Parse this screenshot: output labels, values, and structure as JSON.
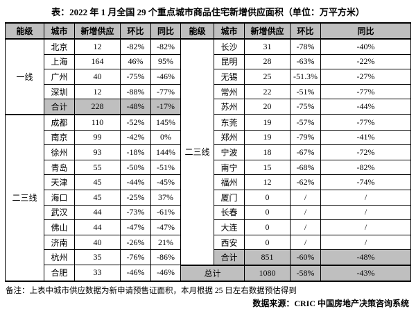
{
  "title": "表：2022 年 1 月全国 29 个重点城市商品住宅新增供应面积（单位：万平方米）",
  "colors": {
    "header_bg": "#bfbfbf",
    "summary_bg": "#bfbfbf",
    "border": "#000000",
    "page_bg": "#ffffff"
  },
  "table": {
    "header": {
      "level": "能级",
      "city": "城市",
      "supply": "新增供应",
      "mom": "环比",
      "yoy": "同比"
    },
    "left_groups": [
      {
        "label": "一线",
        "rows": [
          {
            "city": "北京",
            "supply": "12",
            "mom": "-82%",
            "yoy": "-82%"
          },
          {
            "city": "上海",
            "supply": "164",
            "mom": "46%",
            "yoy": "95%"
          },
          {
            "city": "广州",
            "supply": "40",
            "mom": "-75%",
            "yoy": "-46%"
          },
          {
            "city": "深圳",
            "supply": "12",
            "mom": "-88%",
            "yoy": "-77%"
          },
          {
            "city": "合计",
            "supply": "228",
            "mom": "-48%",
            "yoy": "-17%",
            "summary": true
          }
        ]
      },
      {
        "label": "二三线",
        "rows": [
          {
            "city": "成都",
            "supply": "110",
            "mom": "-52%",
            "yoy": "145%"
          },
          {
            "city": "南京",
            "supply": "99",
            "mom": "-42%",
            "yoy": "0%"
          },
          {
            "city": "徐州",
            "supply": "93",
            "mom": "-18%",
            "yoy": "144%"
          },
          {
            "city": "青岛",
            "supply": "55",
            "mom": "-50%",
            "yoy": "-51%"
          },
          {
            "city": "天津",
            "supply": "45",
            "mom": "-44%",
            "yoy": "-45%"
          },
          {
            "city": "海口",
            "supply": "45",
            "mom": "-25%",
            "yoy": "37%"
          },
          {
            "city": "武汉",
            "supply": "44",
            "mom": "-73%",
            "yoy": "-61%"
          },
          {
            "city": "佛山",
            "supply": "44",
            "mom": "-47%",
            "yoy": "-47%"
          },
          {
            "city": "济南",
            "supply": "40",
            "mom": "-26%",
            "yoy": "21%"
          },
          {
            "city": "杭州",
            "supply": "35",
            "mom": "-76%",
            "yoy": "-86%"
          },
          {
            "city": "合肥",
            "supply": "33",
            "mom": "-46%",
            "yoy": "-46%"
          }
        ]
      }
    ],
    "right_groups": [
      {
        "label": "二三线",
        "rows": [
          {
            "city": "长沙",
            "supply": "31",
            "mom": "-78%",
            "yoy": "-40%"
          },
          {
            "city": "昆明",
            "supply": "28",
            "mom": "-63%",
            "yoy": "-22%"
          },
          {
            "city": "无锡",
            "supply": "25",
            "mom": "-51.3%",
            "yoy": "-27%"
          },
          {
            "city": "常州",
            "supply": "22",
            "mom": "-51%",
            "yoy": "-77%"
          },
          {
            "city": "苏州",
            "supply": "20",
            "mom": "-75%",
            "yoy": "-44%"
          },
          {
            "city": "东莞",
            "supply": "19",
            "mom": "-57%",
            "yoy": "-77%"
          },
          {
            "city": "郑州",
            "supply": "19",
            "mom": "-79%",
            "yoy": "-41%"
          },
          {
            "city": "宁波",
            "supply": "18",
            "mom": "-67%",
            "yoy": "-72%"
          },
          {
            "city": "南宁",
            "supply": "15",
            "mom": "-68%",
            "yoy": "-82%"
          },
          {
            "city": "福州",
            "supply": "12",
            "mom": "-62%",
            "yoy": "-74%"
          },
          {
            "city": "厦门",
            "supply": "0",
            "mom": "/",
            "yoy": "/"
          },
          {
            "city": "长春",
            "supply": "0",
            "mom": "/",
            "yoy": "/"
          },
          {
            "city": "大连",
            "supply": "0",
            "mom": "/",
            "yoy": "/"
          },
          {
            "city": "西安",
            "supply": "0",
            "mom": "/",
            "yoy": "/"
          },
          {
            "city": "合计",
            "supply": "851",
            "mom": "-60%",
            "yoy": "-48%",
            "summary": true
          }
        ]
      }
    ],
    "grand_total": {
      "label": "总计",
      "supply": "1080",
      "mom": "-58%",
      "yoy": "-43%"
    }
  },
  "footer": {
    "note": "备注：上表中城市供应数据为新申请预售证面积，本月根据 25 日左右数据预估得到",
    "source": "数据来源：CRIC 中国房地产决策咨询系统"
  }
}
